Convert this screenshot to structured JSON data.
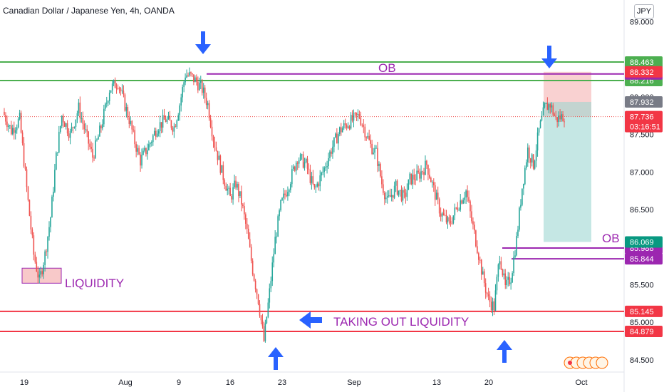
{
  "header": {
    "symbol_title": "Canadian Dollar / Japanese Yen, 4h, OANDA",
    "currency_button": "JPY"
  },
  "colors": {
    "up": "#26a69a",
    "down": "#ef5350",
    "ob_green": "#4caf50",
    "liquidity_red": "#f23645",
    "purple": "#9c27b0",
    "arrow_blue": "#2962ff",
    "target_fill": "#b2dfdb",
    "stop_fill": "#f8c9c9"
  },
  "chart_data": {
    "type": "candlestick",
    "title": "Canadian Dollar / Japanese Yen, 4h, OANDA",
    "ylim": [
      84.3,
      89.25
    ],
    "y_ticks": [
      "89.000",
      "88.500",
      "88.000",
      "87.500",
      "87.000",
      "86.500",
      "86.000",
      "85.500",
      "85.000",
      "84.500"
    ],
    "x_ticks": [
      "19",
      "Aug",
      "9",
      "16",
      "23",
      "Sep",
      "13",
      "20",
      "Oct"
    ],
    "close_path": [
      [
        0,
        87.8
      ],
      [
        6,
        87.55
      ],
      [
        12,
        87.7
      ],
      [
        18,
        86.6
      ],
      [
        22,
        85.9
      ],
      [
        26,
        85.55
      ],
      [
        30,
        85.9
      ],
      [
        34,
        86.4
      ],
      [
        38,
        87.2
      ],
      [
        42,
        87.75
      ],
      [
        48,
        87.5
      ],
      [
        54,
        87.85
      ],
      [
        60,
        87.45
      ],
      [
        64,
        87.2
      ],
      [
        70,
        87.6
      ],
      [
        76,
        88.1
      ],
      [
        82,
        88.2
      ],
      [
        86,
        87.95
      ],
      [
        90,
        87.7
      ],
      [
        94,
        87.4
      ],
      [
        98,
        87.15
      ],
      [
        104,
        87.35
      ],
      [
        110,
        87.6
      ],
      [
        116,
        87.7
      ],
      [
        122,
        87.6
      ],
      [
        126,
        87.9
      ],
      [
        130,
        88.3
      ],
      [
        134,
        88.27
      ],
      [
        138,
        88.2
      ],
      [
        142,
        88.1
      ],
      [
        146,
        87.9
      ],
      [
        150,
        87.45
      ],
      [
        156,
        87.0
      ],
      [
        162,
        86.65
      ],
      [
        166,
        86.85
      ],
      [
        170,
        86.6
      ],
      [
        174,
        86.2
      ],
      [
        178,
        85.7
      ],
      [
        182,
        85.3
      ],
      [
        186,
        84.75
      ],
      [
        190,
        85.4
      ],
      [
        194,
        86.1
      ],
      [
        198,
        86.55
      ],
      [
        204,
        86.85
      ],
      [
        210,
        87.2
      ],
      [
        216,
        87.1
      ],
      [
        222,
        86.75
      ],
      [
        228,
        87.0
      ],
      [
        234,
        87.3
      ],
      [
        240,
        87.55
      ],
      [
        246,
        87.65
      ],
      [
        250,
        87.7
      ],
      [
        254,
        87.75
      ],
      [
        258,
        87.55
      ],
      [
        262,
        87.35
      ],
      [
        266,
        87.25
      ],
      [
        270,
        86.85
      ],
      [
        274,
        86.6
      ],
      [
        280,
        86.8
      ],
      [
        286,
        86.65
      ],
      [
        290,
        86.9
      ],
      [
        296,
        86.95
      ],
      [
        302,
        87.1
      ],
      [
        308,
        86.7
      ],
      [
        312,
        86.45
      ],
      [
        318,
        86.3
      ],
      [
        324,
        86.55
      ],
      [
        330,
        86.75
      ],
      [
        334,
        86.35
      ],
      [
        338,
        86.0
      ],
      [
        342,
        85.6
      ],
      [
        346,
        85.3
      ],
      [
        350,
        85.2
      ],
      [
        354,
        85.9
      ],
      [
        358,
        85.45
      ],
      [
        362,
        85.6
      ],
      [
        366,
        86.1
      ],
      [
        370,
        86.8
      ],
      [
        374,
        87.3
      ],
      [
        378,
        87.1
      ],
      [
        382,
        87.55
      ],
      [
        386,
        87.85
      ],
      [
        390,
        87.9
      ],
      [
        394,
        87.7
      ],
      [
        400,
        87.75
      ]
    ],
    "levels": [
      {
        "price": 88.463,
        "label": "88.463",
        "kind": "ob_upper",
        "color": "#4caf50"
      },
      {
        "price": 88.216,
        "label": "88.216",
        "kind": "ob_lower",
        "color": "#4caf50"
      },
      {
        "price": 88.304,
        "label": "88.304",
        "kind": "high_line",
        "color": "#9c27b0"
      },
      {
        "price": 85.988,
        "label": "85.988",
        "kind": "ob_line",
        "color": "#9c27b0"
      },
      {
        "price": 85.844,
        "label": "85.844",
        "kind": "ob_line",
        "color": "#9c27b0"
      },
      {
        "price": 85.145,
        "label": "85.145",
        "kind": "liquidity",
        "color": "#f23645"
      },
      {
        "price": 84.879,
        "label": "84.879",
        "kind": "liquidity",
        "color": "#f23645"
      }
    ],
    "price_tags": [
      {
        "price": 88.332,
        "label": "88.332",
        "color": "#f23645"
      },
      {
        "price": 87.932,
        "label": "87.932",
        "color": "#787b86"
      },
      {
        "price": 86.069,
        "label": "86.069",
        "color": "#089981"
      }
    ],
    "last_price": {
      "value": 87.736,
      "label": "87.736",
      "countdown": "03:16:51",
      "color": "#f23645"
    },
    "position": {
      "entry": 87.736,
      "stop": 88.332,
      "target": 86.069
    },
    "annotations": {
      "ob_top": "OB",
      "ob_bottom": "OB",
      "liquidity": "LIQUIDITY",
      "taking_out": "TAKING OUT LIQUIDITY"
    }
  }
}
